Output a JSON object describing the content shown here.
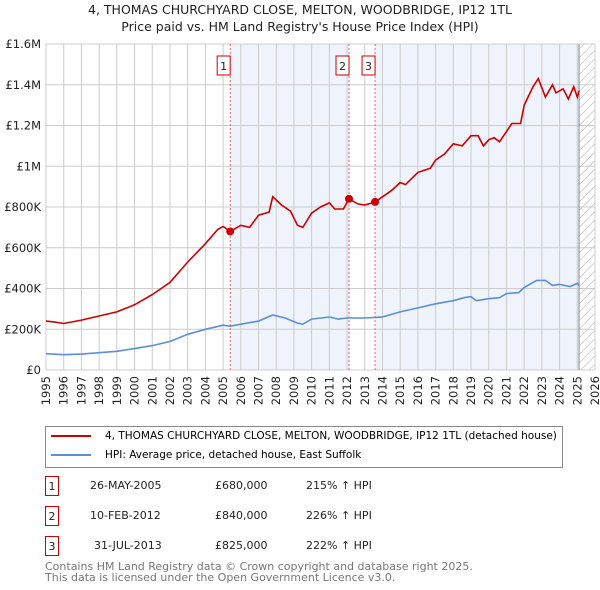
{
  "chart_data": {
    "type": "line",
    "title": "4, THOMAS CHURCHYARD CLOSE, MELTON, WOODBRIDGE, IP12 1TL",
    "subtitle": "Price paid vs. HM Land Registry's House Price Index (HPI)",
    "xlim": [
      1995,
      2026
    ],
    "ylim": [
      0,
      1600000
    ],
    "y_ticks": [
      {
        "v": 0,
        "label": "£0"
      },
      {
        "v": 200000,
        "label": "£200K"
      },
      {
        "v": 400000,
        "label": "£400K"
      },
      {
        "v": 600000,
        "label": "£600K"
      },
      {
        "v": 800000,
        "label": "£800K"
      },
      {
        "v": 1000000,
        "label": "£1M"
      },
      {
        "v": 1200000,
        "label": "£1.2M"
      },
      {
        "v": 1400000,
        "label": "£1.4M"
      },
      {
        "v": 1600000,
        "label": "£1.6M"
      }
    ],
    "x_ticks": [
      1995,
      1996,
      1997,
      1998,
      1999,
      2000,
      2001,
      2002,
      2003,
      2004,
      2005,
      2006,
      2007,
      2008,
      2009,
      2010,
      2011,
      2012,
      2013,
      2014,
      2015,
      2016,
      2017,
      2018,
      2019,
      2020,
      2021,
      2022,
      2023,
      2024,
      2025,
      2026
    ],
    "grid": true,
    "series": [
      {
        "name": "4, THOMAS CHURCHYARD CLOSE, MELTON, WOODBRIDGE, IP12 1TL (detached house)",
        "color": "#cc0000",
        "x": [
          1995,
          1995.5,
          1996,
          1997,
          1998,
          1999,
          2000,
          2001,
          2002,
          2003,
          2004,
          2004.7,
          2005,
          2005.4,
          2006,
          2006.5,
          2007,
          2007.6,
          2007.8,
          2008.3,
          2008.8,
          2009.2,
          2009.5,
          2010,
          2010.5,
          2011,
          2011.3,
          2011.8,
          2012.1,
          2012.6,
          2013,
          2013.6,
          2014,
          2014.5,
          2015,
          2015.3,
          2016,
          2016.7,
          2017,
          2017.5,
          2018,
          2018.5,
          2019,
          2019.4,
          2019.7,
          2020,
          2020.3,
          2020.6,
          2021,
          2021.3,
          2021.8,
          2022,
          2022.5,
          2022.8,
          2023.2,
          2023.6,
          2023.8,
          2024.2,
          2024.5,
          2024.8,
          2025,
          2025.1
        ],
        "y": [
          240000,
          235000,
          228000,
          245000,
          265000,
          285000,
          320000,
          370000,
          430000,
          530000,
          620000,
          690000,
          705000,
          680000,
          710000,
          700000,
          760000,
          775000,
          850000,
          810000,
          780000,
          710000,
          700000,
          770000,
          800000,
          820000,
          790000,
          790000,
          840000,
          815000,
          810000,
          825000,
          850000,
          880000,
          920000,
          910000,
          970000,
          990000,
          1030000,
          1060000,
          1110000,
          1100000,
          1150000,
          1150000,
          1100000,
          1130000,
          1140000,
          1120000,
          1170000,
          1210000,
          1210000,
          1300000,
          1390000,
          1430000,
          1340000,
          1400000,
          1360000,
          1380000,
          1330000,
          1390000,
          1340000,
          1370000
        ]
      },
      {
        "name": "HPI: Average price, detached house, East Suffolk",
        "color": "#5b8fd6",
        "x": [
          1995,
          1996,
          1997,
          1998,
          1999,
          2000,
          2001,
          2002,
          2003,
          2004,
          2005,
          2005.4,
          2006,
          2007,
          2007.8,
          2008.5,
          2009.2,
          2009.5,
          2010,
          2011,
          2011.5,
          2012,
          2013,
          2014,
          2015,
          2016,
          2017,
          2018,
          2018.6,
          2019,
          2019.3,
          2020,
          2020.6,
          2021,
          2021.7,
          2022,
          2022.7,
          2023.2,
          2023.6,
          2024,
          2024.6,
          2025,
          2025.1
        ],
        "y": [
          80000,
          75000,
          78000,
          85000,
          92000,
          105000,
          120000,
          140000,
          175000,
          200000,
          220000,
          215000,
          225000,
          240000,
          270000,
          255000,
          230000,
          225000,
          250000,
          260000,
          250000,
          255000,
          255000,
          260000,
          285000,
          305000,
          325000,
          340000,
          355000,
          360000,
          340000,
          350000,
          355000,
          375000,
          380000,
          405000,
          440000,
          440000,
          415000,
          420000,
          410000,
          425000,
          415000
        ]
      }
    ],
    "sales": [
      {
        "n": "1",
        "x": 2005.4,
        "y": 680000,
        "date": "26-MAY-2005",
        "price": "£680,000",
        "hpi": "215% ↑ HPI"
      },
      {
        "n": "2",
        "x": 2012.11,
        "y": 840000,
        "date": "10-FEB-2012",
        "price": "£840,000",
        "hpi": "226% ↑ HPI"
      },
      {
        "n": "3",
        "x": 2013.58,
        "y": 825000,
        "date": "31-JUL-2013",
        "price": "£825,000",
        "hpi": "222% ↑ HPI"
      }
    ],
    "forecast_start": 2025.1
  },
  "footer": [
    "Contains HM Land Registry data © Crown copyright and database right 2025.",
    "This data is licensed under the Open Government Licence v3.0."
  ]
}
